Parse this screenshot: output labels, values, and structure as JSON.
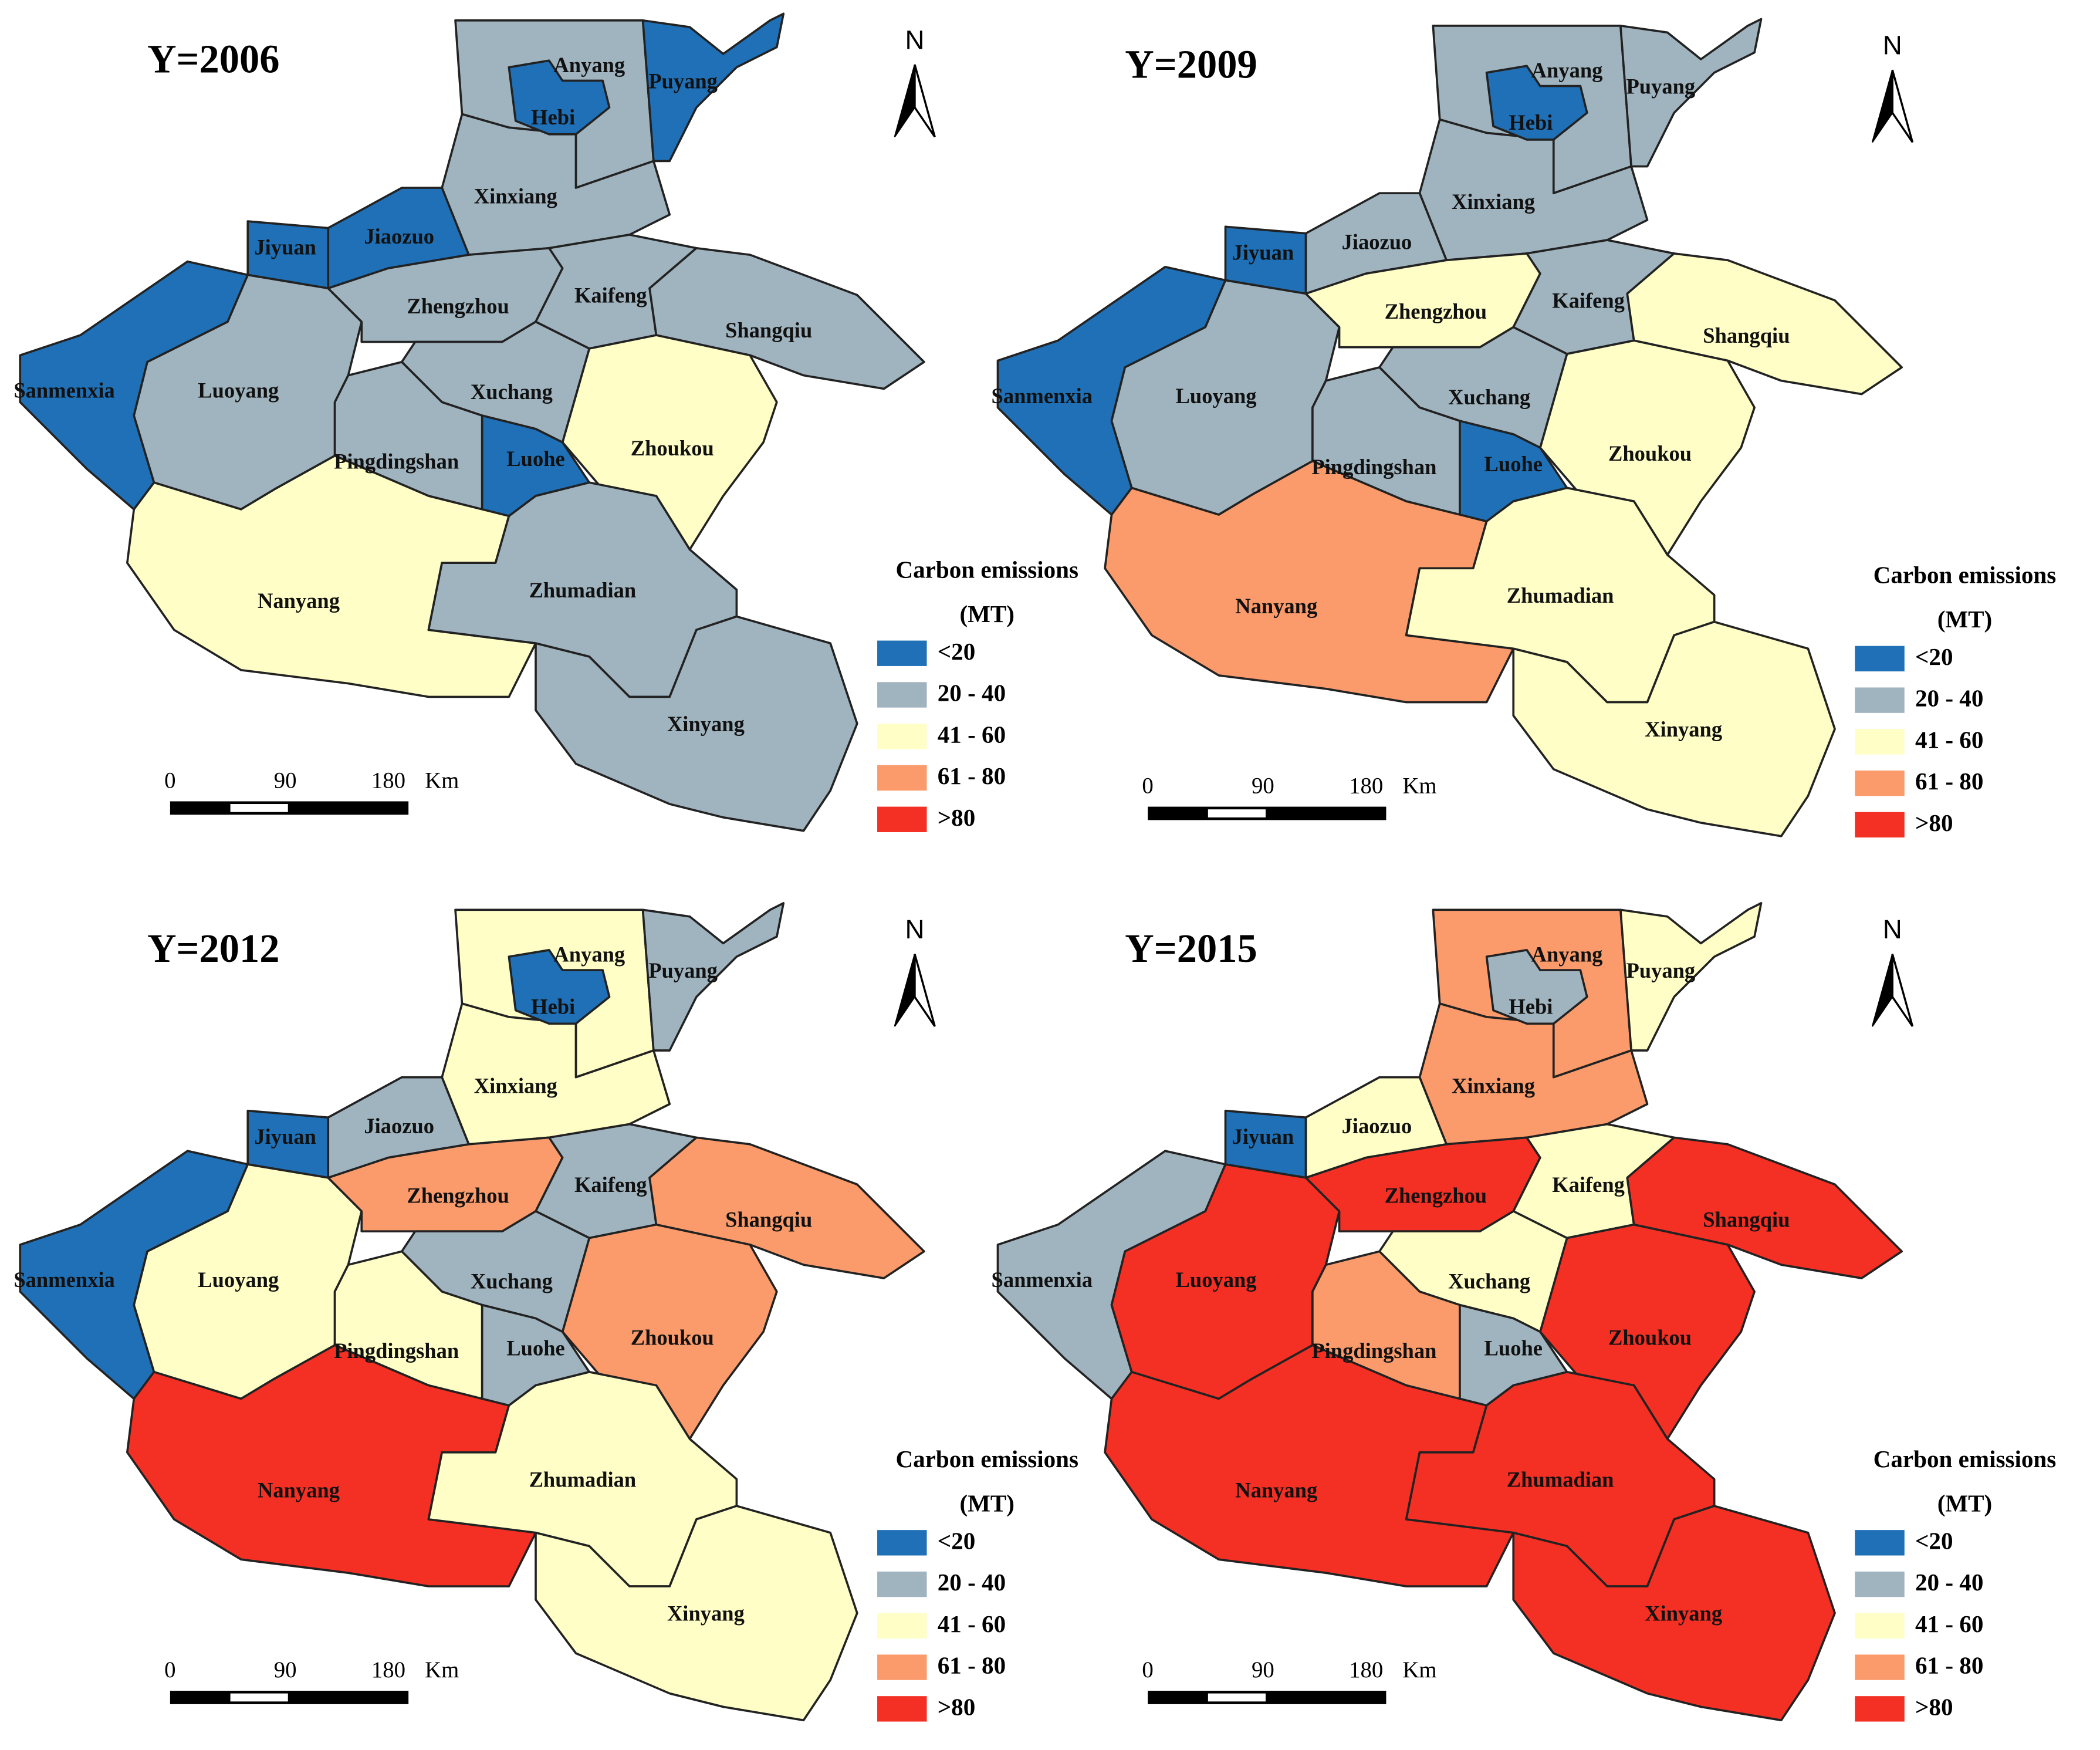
{
  "maps": [
    {
      "title": "Y=2006",
      "regions": [
        {
          "name": "Anyang",
          "color": "#a0b4bf"
        },
        {
          "name": "Hebi",
          "color": "#1f70b6"
        },
        {
          "name": "Puyang",
          "color": "#1f70b6"
        },
        {
          "name": "Xinxiang",
          "color": "#a0b4bf"
        },
        {
          "name": "Jiaozuo",
          "color": "#1f70b6"
        },
        {
          "name": "Jiyuan",
          "color": "#1f70b6"
        },
        {
          "name": "Sanmenxia",
          "color": "#1f70b6"
        },
        {
          "name": "Luoyang",
          "color": "#a0b4bf"
        },
        {
          "name": "Zhengzhou",
          "color": "#a0b4bf"
        },
        {
          "name": "Kaifeng",
          "color": "#a0b4bf"
        },
        {
          "name": "Shangqiu",
          "color": "#a0b4bf"
        },
        {
          "name": "Zhoukou",
          "color": "#fefec6"
        },
        {
          "name": "Xuchang",
          "color": "#a0b4bf"
        },
        {
          "name": "Pingdingshan",
          "color": "#a0b4bf"
        },
        {
          "name": "Luohe",
          "color": "#1f70b6"
        },
        {
          "name": "Nanyang",
          "color": "#fefec6"
        },
        {
          "name": "Zhumadian",
          "color": "#a0b4bf"
        },
        {
          "name": "Xinyang",
          "color": "#a0b4bf"
        }
      ]
    },
    {
      "title": "Y=2009",
      "regions": [
        {
          "name": "Anyang",
          "color": "#a0b4bf"
        },
        {
          "name": "Hebi",
          "color": "#1f70b6"
        },
        {
          "name": "Puyang",
          "color": "#a0b4bf"
        },
        {
          "name": "Xinxiang",
          "color": "#a0b4bf"
        },
        {
          "name": "Jiaozuo",
          "color": "#a0b4bf"
        },
        {
          "name": "Jiyuan",
          "color": "#1f70b6"
        },
        {
          "name": "Sanmenxia",
          "color": "#1f70b6"
        },
        {
          "name": "Luoyang",
          "color": "#a0b4bf"
        },
        {
          "name": "Zhengzhou",
          "color": "#fefec6"
        },
        {
          "name": "Kaifeng",
          "color": "#a0b4bf"
        },
        {
          "name": "Shangqiu",
          "color": "#fefec6"
        },
        {
          "name": "Zhoukou",
          "color": "#fefec6"
        },
        {
          "name": "Xuchang",
          "color": "#a0b4bf"
        },
        {
          "name": "Pingdingshan",
          "color": "#a0b4bf"
        },
        {
          "name": "Luohe",
          "color": "#1f70b6"
        },
        {
          "name": "Nanyang",
          "color": "#fb9b6b"
        },
        {
          "name": "Zhumadian",
          "color": "#fefec6"
        },
        {
          "name": "Xinyang",
          "color": "#fefec6"
        }
      ]
    },
    {
      "title": "Y=2012",
      "regions": [
        {
          "name": "Anyang",
          "color": "#fefec6"
        },
        {
          "name": "Hebi",
          "color": "#1f70b6"
        },
        {
          "name": "Puyang",
          "color": "#a0b4bf"
        },
        {
          "name": "Xinxiang",
          "color": "#fefec6"
        },
        {
          "name": "Jiaozuo",
          "color": "#a0b4bf"
        },
        {
          "name": "Jiyuan",
          "color": "#1f70b6"
        },
        {
          "name": "Sanmenxia",
          "color": "#1f70b6"
        },
        {
          "name": "Luoyang",
          "color": "#fefec6"
        },
        {
          "name": "Zhengzhou",
          "color": "#fb9b6b"
        },
        {
          "name": "Kaifeng",
          "color": "#a0b4bf"
        },
        {
          "name": "Shangqiu",
          "color": "#fb9b6b"
        },
        {
          "name": "Zhoukou",
          "color": "#fb9b6b"
        },
        {
          "name": "Xuchang",
          "color": "#a0b4bf"
        },
        {
          "name": "Pingdingshan",
          "color": "#fefec6"
        },
        {
          "name": "Luohe",
          "color": "#a0b4bf"
        },
        {
          "name": "Nanyang",
          "color": "#f42f24"
        },
        {
          "name": "Zhumadian",
          "color": "#fefec6"
        },
        {
          "name": "Xinyang",
          "color": "#fefec6"
        }
      ]
    },
    {
      "title": "Y=2015",
      "regions": [
        {
          "name": "Anyang",
          "color": "#fb9b6b"
        },
        {
          "name": "Hebi",
          "color": "#a0b4bf"
        },
        {
          "name": "Puyang",
          "color": "#fefec6"
        },
        {
          "name": "Xinxiang",
          "color": "#fb9b6b"
        },
        {
          "name": "Jiaozuo",
          "color": "#fefec6"
        },
        {
          "name": "Jiyuan",
          "color": "#1f70b6"
        },
        {
          "name": "Sanmenxia",
          "color": "#a0b4bf"
        },
        {
          "name": "Luoyang",
          "color": "#f42f24"
        },
        {
          "name": "Zhengzhou",
          "color": "#f42f24"
        },
        {
          "name": "Kaifeng",
          "color": "#fefec6"
        },
        {
          "name": "Shangqiu",
          "color": "#f42f24"
        },
        {
          "name": "Zhoukou",
          "color": "#f42f24"
        },
        {
          "name": "Xuchang",
          "color": "#fefec6"
        },
        {
          "name": "Pingdingshan",
          "color": "#fb9b6b"
        },
        {
          "name": "Luohe",
          "color": "#a0b4bf"
        },
        {
          "name": "Nanyang",
          "color": "#f42f24"
        },
        {
          "name": "Zhumadian",
          "color": "#f42f24"
        },
        {
          "name": "Xinyang",
          "color": "#f42f24"
        }
      ]
    }
  ],
  "legend": {
    "title": "Carbon emissions",
    "unit": "(MT)",
    "classes": [
      {
        "label": "<20",
        "color": "#1f70b6"
      },
      {
        "label": "20 - 40",
        "color": "#a0b4bf"
      },
      {
        "label": "41 - 60",
        "color": "#fefec6"
      },
      {
        "label": "61 - 80",
        "color": "#fb9b6b"
      },
      {
        "label": ">80",
        "color": "#f42f24"
      }
    ]
  },
  "north": "N",
  "scale_bar": {
    "labels": [
      "0",
      "90",
      "180"
    ],
    "unit": "Km"
  }
}
